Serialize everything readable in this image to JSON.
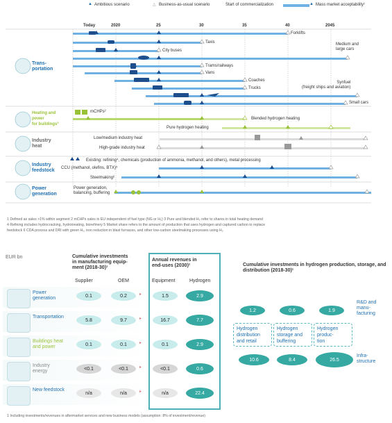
{
  "legend": {
    "ambitious": "Ambitious scenario",
    "bau": "Business-as-usual scenario",
    "commercialization": "Start of commercialization",
    "mass_market": "Mass market acceptability¹"
  },
  "timeline": {
    "today": "Today",
    "years": [
      "2020",
      "25",
      "30",
      "35",
      "40",
      "2045"
    ]
  },
  "sections": {
    "transportation": "Trans-\nportation",
    "heating": "Heating and\npower\nfor buildings³",
    "industry_heat": "Industry\nheat",
    "industry_feedstock": "Industry\nfeedstock",
    "power_generation": "Power\ngeneration"
  },
  "segment_labels": {
    "forklifts": "Forklifts",
    "taxis": "Taxis",
    "city_buses": "City buses",
    "medium_cars": "Medium and\nlarge cars",
    "trams": "Trams/railways",
    "vans": "Vans",
    "coaches": "Coaches",
    "trucks": "Trucks",
    "synfuel": "Synfuel\n(freight ships and aviation)",
    "small_cars": "Small cars",
    "mchps": "mCHPs²",
    "blended": "Blended hydrogen heating",
    "pure_heating": "Pure hydrogen heating",
    "low_medium_heat": "Low/medium industry heat",
    "high_grade_heat": "High-grade industry heat",
    "existing": "Existing: refining⁴, chemicals (production of ammonia, methanol, and others), metal processing",
    "ccu": "CCU (methanol, olefins, BTX)⁵",
    "steelmaking": "Steelmaking⁶",
    "power_gen": "Power generation,\nbalancing, buffering"
  },
  "footnotes": [
    "1 Defined as sales >1% within segment     2 mCHPs sales in EU independent of fuel type (NG or H₂)     3 Pure and blended H₂ refer to shares in total heating demand",
    "4 Refining includes hydrocracking, hydrotreating, biorefinery     5 Market share refers to the amount of production that uses hydrogen and captured carbon to replace",
    "feedstock 6 CDA process and DRI with green H₂, iron reduction in blast furnaces, and other low-carbon steelmaking processes using H₂"
  ],
  "investments": {
    "unit": "EUR bn",
    "manufacturing_header": "Cumulative investments\nin manufacturing equip-\nment (2018-30)¹",
    "supplier": "Supplier",
    "oem": "OEM",
    "revenues_header": "Annual revenues in\nend-uses (2030)¹",
    "equipment": "Equipment",
    "hydrogen": "Hydrogen",
    "infra_header": "Cumulative investments in hydrogen production, storage, and\ndistribution (2018-30)¹",
    "rows": [
      {
        "label": "Power\ngeneration",
        "supplier": "0.1",
        "oem": "0.2",
        "equipment": "1.5",
        "hydrogen": "2.9"
      },
      {
        "label": "Transportation",
        "supplier": "5.8",
        "oem": "9.7",
        "equipment": "16.7",
        "hydrogen": "7.7"
      },
      {
        "label": "Buildings heat\nand power",
        "supplier": "0.1",
        "oem": "0.1",
        "equipment": "0.1",
        "hydrogen": "2.9"
      },
      {
        "label": "Industry\nenergy",
        "supplier": "<0.1",
        "oem": "<0.1",
        "equipment": "<0.1",
        "hydrogen": "0.6"
      },
      {
        "label": "New feedstock",
        "supplier": "n/a",
        "oem": "n/a",
        "equipment": "n/a",
        "hydrogen": "22.4"
      }
    ],
    "rd_values": [
      "1.2",
      "0.6",
      "1.9"
    ],
    "rd_label": "R&D and\nmanu-\nfacturing",
    "infra_boxes": [
      "Hydrogen\ndistribution\nand retail",
      "Hydrogen\nstorage and\nbuffering",
      "Hydrogen\nproduc-\ntion"
    ],
    "infra_values": [
      "10.6",
      "8.4",
      "26.5"
    ],
    "infra_label": "Infra-\nstructure",
    "footnote": "1 Including investments/revenues in aftermarket services and new business models (assumption: 8% of investment/revenue)"
  }
}
